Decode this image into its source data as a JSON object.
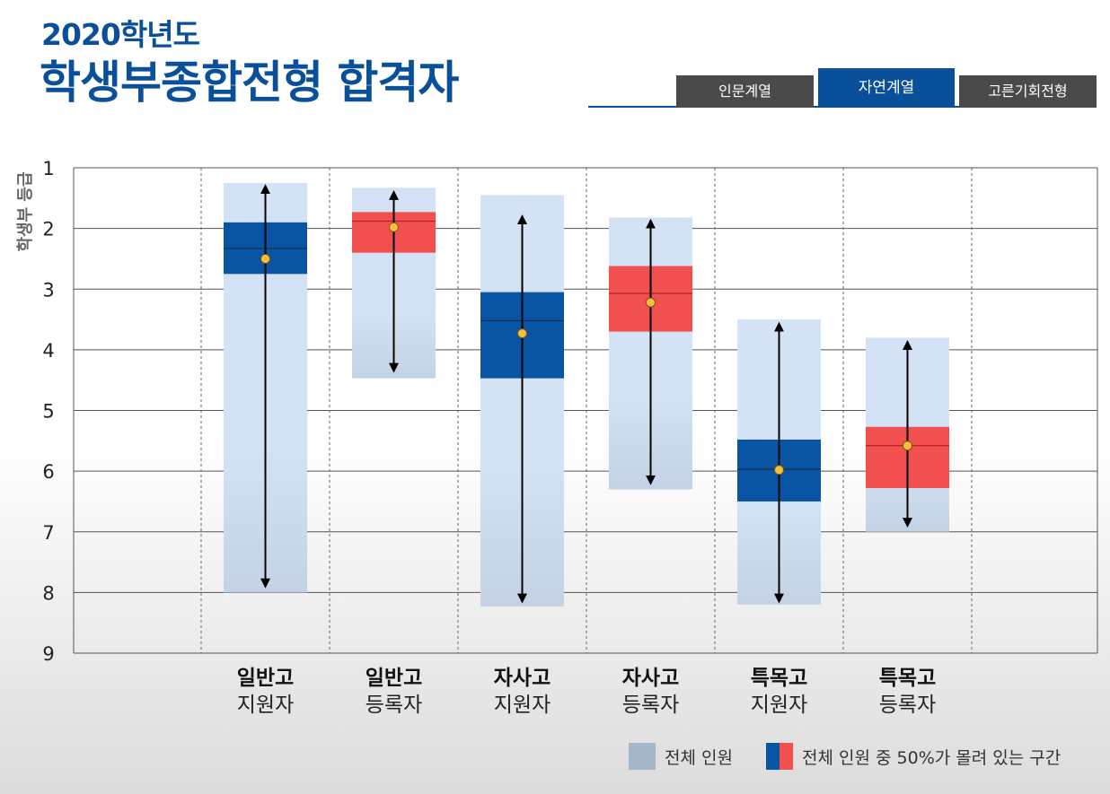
{
  "header": {
    "year_title": "2020학년도",
    "main_title": "학생부종합전형 합격자"
  },
  "tabs": [
    {
      "label": "인문계열",
      "active": false
    },
    {
      "label": "자연계열",
      "active": true
    },
    {
      "label": "고른기회전형",
      "active": false
    }
  ],
  "legend": {
    "total_label": "전체 인원",
    "middle50_label": "전체 인원 중 50%가 몰려 있는 구간"
  },
  "colors": {
    "title": "#0a4f99",
    "range_fill": "#d3e3f5",
    "applicant_box": "#0a55a3",
    "registrant_box": "#f24f4f",
    "median_dot": "#f5c040",
    "legend_total": "#a5b6c9"
  },
  "chart_data": {
    "type": "boxplot",
    "ylabel": "학생부 등급",
    "ylim": [
      1,
      9
    ],
    "y_inverted": true,
    "yticks": [
      1,
      2,
      3,
      4,
      5,
      6,
      7,
      8,
      9
    ],
    "grid": true,
    "legend_position": "bottom-right",
    "categories": [
      {
        "line1": "일반고",
        "line2": "지원자",
        "group": "applicant",
        "range": [
          1.25,
          8.0
        ],
        "box": [
          1.9,
          2.75
        ],
        "median": 2.33,
        "mean": 2.5,
        "whisker": [
          1.35,
          7.85
        ]
      },
      {
        "line1": "일반고",
        "line2": "등록자",
        "group": "registrant",
        "range": [
          1.33,
          4.47
        ],
        "box": [
          1.73,
          2.4
        ],
        "median": 1.88,
        "mean": 1.98,
        "whisker": [
          1.45,
          4.3
        ]
      },
      {
        "line1": "자사고",
        "line2": "지원자",
        "group": "applicant",
        "range": [
          1.45,
          8.23
        ],
        "box": [
          3.05,
          4.47
        ],
        "median": 3.52,
        "mean": 3.73,
        "whisker": [
          1.85,
          8.1
        ]
      },
      {
        "line1": "자사고",
        "line2": "등록자",
        "group": "registrant",
        "range": [
          1.82,
          6.3
        ],
        "box": [
          2.62,
          3.7
        ],
        "median": 3.07,
        "mean": 3.22,
        "whisker": [
          1.92,
          6.15
        ]
      },
      {
        "line1": "특목고",
        "line2": "지원자",
        "group": "applicant",
        "range": [
          3.5,
          8.2
        ],
        "box": [
          5.48,
          6.5
        ],
        "median": 5.97,
        "mean": 5.98,
        "whisker": [
          3.62,
          8.1
        ]
      },
      {
        "line1": "특목고",
        "line2": "등록자",
        "group": "registrant",
        "range": [
          3.8,
          7.0
        ],
        "box": [
          5.27,
          6.28
        ],
        "median": 5.58,
        "mean": 5.58,
        "whisker": [
          3.92,
          6.85
        ]
      }
    ]
  }
}
